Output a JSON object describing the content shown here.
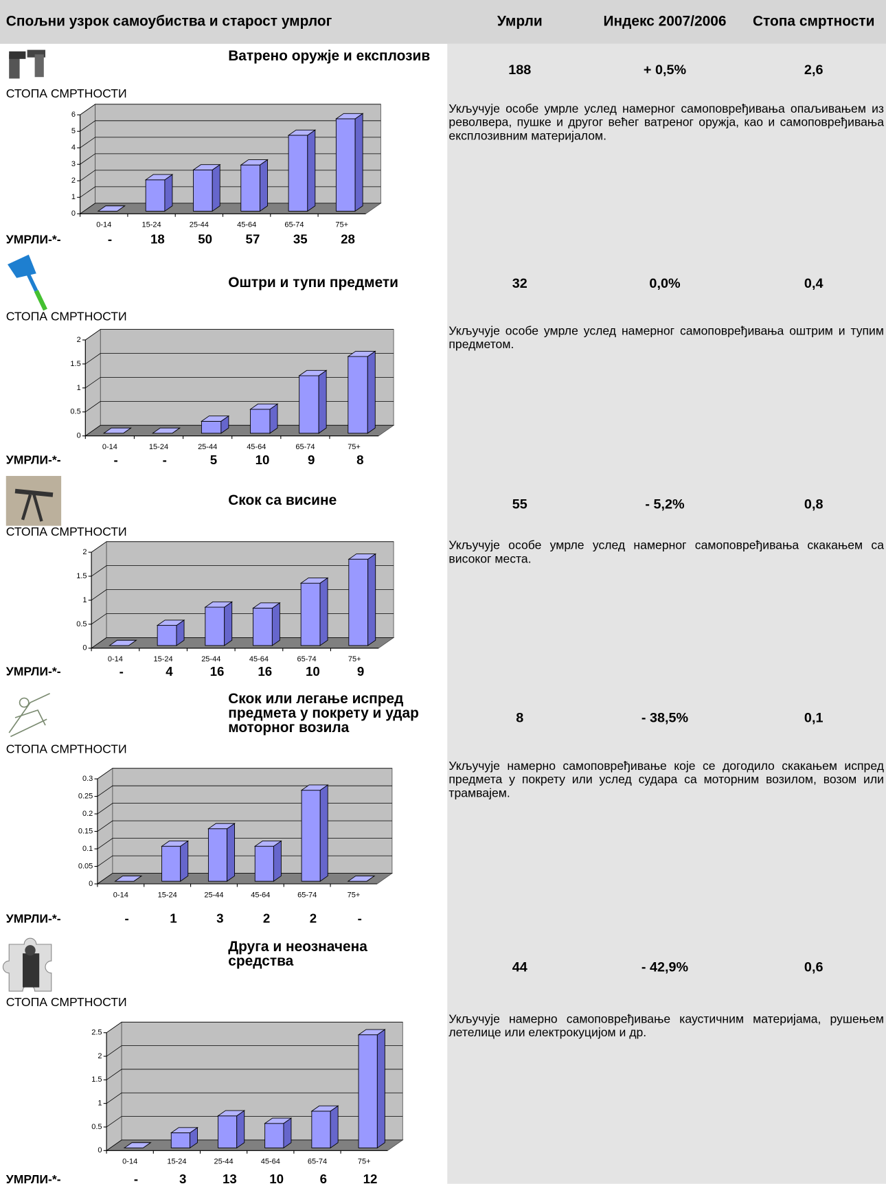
{
  "header": {
    "cause": "Спољни узрок самоубиства и старост умрлог",
    "deaths": "Умрли",
    "index": "Индекс 2007/2006",
    "rate": "Стопа смртности"
  },
  "sections": [
    {
      "title": "Ватрено оружје и експлозив",
      "deaths": 188,
      "index": "+ 0,5%",
      "rate": "2,6",
      "rate_label": "СТОПА СМРТНОСТИ",
      "deaths_label": "УМРЛИ-*-",
      "deaths_by_age": [
        "-",
        18,
        50,
        57,
        35,
        28
      ],
      "description": "Укључује особе умрле услед намерног самоповређивања опаљивањем из револвера, пушке и другог већег ватреног оружја, као и самоповређивања експлозивним материјалом."
    },
    {
      "title": "Оштри и тупи предмети",
      "deaths": 32,
      "index": "0,0%",
      "rate": "0,4",
      "rate_label": "СТОПА СМРТНОСТИ",
      "deaths_label": "УМРЛИ-*-",
      "deaths_by_age": [
        "-",
        "-",
        5,
        10,
        9,
        8
      ],
      "description": "Укључује особе умрле услед намерног самоповређивања оштрим и тупим предметом."
    },
    {
      "title": "Скок са висине",
      "deaths": 55,
      "index": "- 5,2%",
      "rate": "0,8",
      "rate_label": "СТОПА СМРТНОСТИ",
      "deaths_label": "УМРЛИ-*-",
      "deaths_by_age": [
        "-",
        4,
        16,
        16,
        10,
        9
      ],
      "description": "Укључује особе умрле услед намерног самоповређивања скакањем са високог места."
    },
    {
      "title": "Скок или легање испред предмета у покрету и удар моторног возила",
      "deaths": 8,
      "index": "- 38,5%",
      "rate": "0,1",
      "rate_label": "СТОПА СМРТНОСТИ",
      "deaths_label": "УМРЛИ-*-",
      "deaths_by_age": [
        "-",
        1,
        3,
        2,
        2,
        "-"
      ],
      "description": "Укључује намерно самоповређивање које се догодило скакањем испред предмета у покрету или услед судара са моторним возилом, возом или трамвајем."
    },
    {
      "title": "Друга и неозначена средства",
      "deaths": 44,
      "index": "- 42,9%",
      "rate": "0,6",
      "rate_label": "СТОПА СМРТНОСТИ",
      "deaths_label": "УМРЛИ-*-",
      "deaths_by_age": [
        "-",
        3,
        13,
        10,
        6,
        12
      ],
      "description": "Укључује намерно самоповређивање каустичним материјама, рушењем летелице или електрокуцијом и др."
    }
  ],
  "chart_data": [
    {
      "type": "bar",
      "categories": [
        "0-14",
        "15-24",
        "25-44",
        "45-64",
        "65-74",
        "75+"
      ],
      "values": [
        0,
        1.9,
        2.5,
        2.8,
        4.6,
        5.6
      ],
      "color": "#9999ff",
      "ylim": [
        0,
        6
      ],
      "yticks": [
        0,
        1,
        2,
        3,
        4,
        5,
        6
      ],
      "grid": true
    },
    {
      "type": "bar",
      "categories": [
        "0-14",
        "15-24",
        "25-44",
        "45-64",
        "65-74",
        "75+"
      ],
      "values": [
        0,
        0,
        0.25,
        0.5,
        1.2,
        1.6
      ],
      "color": "#9999ff",
      "ylim": [
        0,
        2
      ],
      "yticks": [
        0,
        0.5,
        1,
        1.5,
        2
      ],
      "grid": true
    },
    {
      "type": "bar",
      "categories": [
        "0-14",
        "15-24",
        "25-44",
        "45-64",
        "65-74",
        "75+"
      ],
      "values": [
        0,
        0.42,
        0.8,
        0.78,
        1.3,
        1.8
      ],
      "color": "#9999ff",
      "ylim": [
        0,
        2
      ],
      "yticks": [
        0,
        0.5,
        1,
        1.5,
        2
      ],
      "grid": true
    },
    {
      "type": "bar",
      "categories": [
        "0-14",
        "15-24",
        "25-44",
        "45-64",
        "65-74",
        "75+"
      ],
      "values": [
        0,
        0.1,
        0.15,
        0.1,
        0.26,
        0
      ],
      "color": "#9999ff",
      "ylim": [
        0,
        0.3
      ],
      "yticks": [
        0,
        0.05,
        0.1,
        0.15,
        0.2,
        0.25,
        0.3
      ],
      "grid": true
    },
    {
      "type": "bar",
      "categories": [
        "0-14",
        "15-24",
        "25-44",
        "45-64",
        "65-74",
        "75+"
      ],
      "values": [
        0,
        0.32,
        0.68,
        0.52,
        0.78,
        2.4
      ],
      "color": "#9999ff",
      "ylim": [
        0,
        2.5
      ],
      "yticks": [
        0,
        0.5,
        1,
        1.5,
        2,
        2.5
      ],
      "grid": true
    }
  ]
}
